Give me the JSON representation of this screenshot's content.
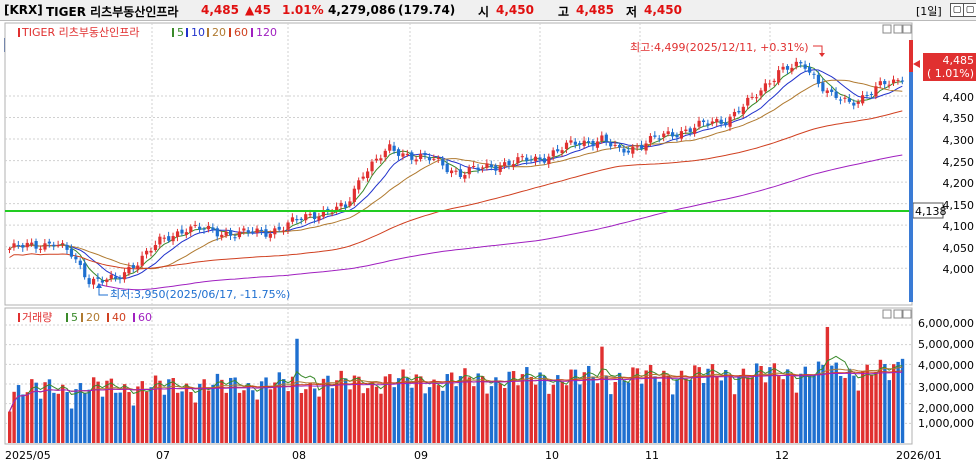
{
  "header": {
    "market": "[KRX]",
    "name": "TIGER 리츠부동산인프라",
    "price": "4,485",
    "change": "▲45",
    "change_pct": "1.01%",
    "volume": "4,279,086",
    "value": "(179.74)",
    "open_label": "시",
    "open": "4,450",
    "high_label": "고",
    "high": "4,485",
    "low_label": "저",
    "low": "4,450",
    "period": "[1일]"
  },
  "price_panel": {
    "hoga_label": "호",
    "legend_name": "TIGER 리츠부동산인프라",
    "ma_periods": [
      "5",
      "10",
      "20",
      "60",
      "120"
    ],
    "high_annotation": "최고:4,499(2025/12/11, +0.31%)",
    "low_annotation": "최저:3,950(2025/06/17, -11.75%)",
    "current_price_tag": "4,485",
    "current_pct_tag": "( 1.01%)",
    "line_price_tag": "4,138",
    "y_ticks": [
      "4,400",
      "4,350",
      "4,300",
      "4,250",
      "4,200",
      "4,150",
      "4,100",
      "4,050",
      "4,000"
    ]
  },
  "volume_panel": {
    "legend_name": "거래량",
    "ma_periods": [
      "5",
      "20",
      "40",
      "60"
    ],
    "y_ticks": [
      "6,000,000",
      "5,000,000",
      "4,000,000",
      "3,000,000",
      "2,000,000",
      "1,000,000"
    ]
  },
  "x_axis": {
    "labels": [
      "2025/05",
      "07",
      "08",
      "09",
      "10",
      "11",
      "12",
      "2026/01"
    ]
  },
  "colors": {
    "up": "#e03030",
    "down": "#1e6fd0",
    "ma5": "#3a8a2a",
    "ma10": "#2233cc",
    "ma20": "#b07a30",
    "ma60": "#d04020",
    "ma120": "#a020c0",
    "hline": "#22cc22"
  },
  "chart_data": {
    "type": "candlestick",
    "price_ylim": [
      3950,
      4499
    ],
    "volume_ylim": [
      0,
      6000000
    ],
    "horizontal_line": 4138,
    "last_close": 4485,
    "period_high": 4499,
    "period_low": 3950,
    "last_volume": 4279086
  }
}
